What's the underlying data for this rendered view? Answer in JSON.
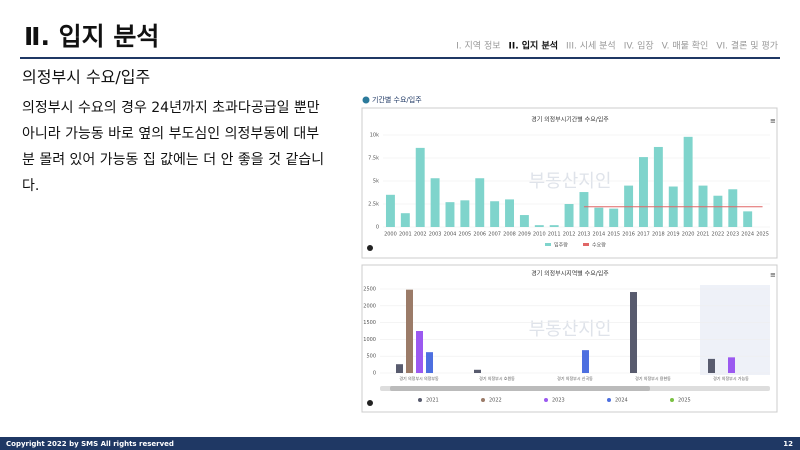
{
  "header": {
    "title": "Ⅱ. 입지 분석",
    "nav": [
      "I. 지역 정보",
      "II. 입지 분석",
      "III. 시세 분석",
      "IV. 임장",
      "V. 매물 확인",
      "VI. 결론 및 평가"
    ],
    "active": 1
  },
  "subtitle": "의정부시 수요/입주",
  "body": [
    "의정부시 수요의 경우 24년까지 초과다공급일 뿐만",
    "아니라 가능동 바로 옆의 부도심인 의정부동에 대부",
    "분 몰려 있어 가능동 집 값에는 더 안 좋을 것 같습니",
    "다."
  ],
  "panel_label": "기간별 수요/입주",
  "watermark": "부동산지인",
  "chart_data": [
    {
      "type": "bar_line",
      "title": "경기 의정부시기간별 수요/입주",
      "categories": [
        "2000",
        "2001",
        "2002",
        "2003",
        "2004",
        "2005",
        "2006",
        "2007",
        "2008",
        "2009",
        "2010",
        "2011",
        "2012",
        "2013",
        "2014",
        "2015",
        "2016",
        "2017",
        "2018",
        "2019",
        "2020",
        "2021",
        "2022",
        "2023",
        "2024",
        "2025"
      ],
      "series": [
        {
          "name": "입주량",
          "color": "#7fd4cc",
          "values": [
            3500,
            1500,
            8600,
            5300,
            2700,
            2900,
            5300,
            2800,
            3000,
            1300,
            200,
            200,
            2500,
            3800,
            2100,
            2000,
            4500,
            7600,
            8700,
            4400,
            9800,
            4500,
            3400,
            4100,
            1700,
            0
          ]
        },
        {
          "name": "수요량",
          "color": "#e06666",
          "values": [
            null,
            null,
            null,
            null,
            null,
            null,
            null,
            null,
            null,
            null,
            null,
            null,
            null,
            2200,
            2200,
            2200,
            2200,
            2200,
            2200,
            2200,
            2200,
            2200,
            2200,
            2200,
            2200,
            2200
          ]
        }
      ],
      "ylim": [
        0,
        10000
      ],
      "yticks": [
        0,
        {
          "value": 2500,
          "label": "2.5k"
        },
        {
          "value": 5000,
          "label": "5k"
        },
        {
          "value": 7500,
          "label": "7.5k"
        },
        {
          "value": 10000,
          "label": "10k"
        }
      ],
      "grid": true
    },
    {
      "type": "grouped_bar",
      "title": "경기 의정부시지역별 수요/입주",
      "categories": [
        "경기 의정부시 의정부동",
        "경기 의정부시 호원동",
        "경기 의정부시 신곡동",
        "경기 의정부시 용현동",
        "경기 의정부시 가능동"
      ],
      "series": [
        {
          "name": "2021",
          "color": "#585b6e",
          "values": [
            262,
            96,
            0,
            2410,
            420
          ]
        },
        {
          "name": "2022",
          "color": "#9b7b68",
          "values": [
            2480,
            0,
            0,
            0,
            0
          ]
        },
        {
          "name": "2023",
          "color": "#9b59f0",
          "values": [
            1250,
            0,
            0,
            0,
            466
          ]
        },
        {
          "name": "2024",
          "color": "#4d6fe0",
          "values": [
            620,
            0,
            680,
            0,
            0
          ]
        },
        {
          "name": "2025",
          "color": "#7ac143",
          "values": [
            0,
            0,
            0,
            0,
            0
          ]
        }
      ],
      "ylim": [
        0,
        2500
      ],
      "yticks": [
        0,
        500,
        1000,
        1500,
        2000,
        2500
      ],
      "grid": true
    }
  ]
}
